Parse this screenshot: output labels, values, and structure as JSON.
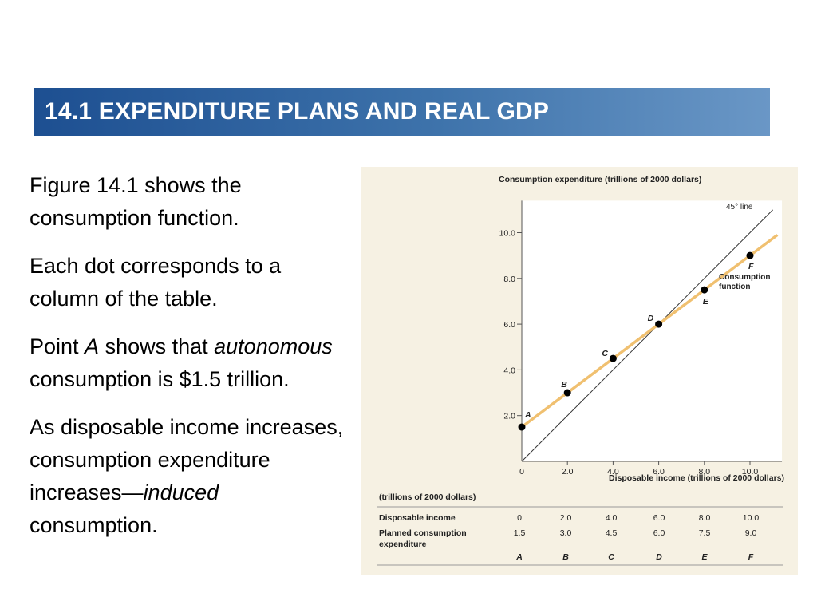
{
  "slide": {
    "title": "14.1 EXPENDITURE PLANS AND REAL GDP",
    "paragraphs": {
      "p1": "Figure 14.1 shows the consumption function.",
      "p2": "Each dot corresponds to a column of the table.",
      "p3": {
        "a": "Point ",
        "b": "A",
        "c": " shows that ",
        "d": "autonomous",
        "e": " consumption is $1.5 trillion."
      },
      "p4": {
        "a": "As disposable income increases, consumption expenditure increases—",
        "b": "induced",
        "c": " consumption."
      }
    }
  },
  "chart_data": {
    "type": "line",
    "ylabel": "Consumption expenditure (trillions of 2000 dollars)",
    "xlabel": "Disposable income (trillions of 2000 dollars)",
    "xlim": [
      0,
      11.4
    ],
    "ylim": [
      0,
      11.4
    ],
    "x_ticks": [
      0,
      2,
      4,
      6,
      8,
      10
    ],
    "x_tick_labels": [
      "0",
      "2.0",
      "4.0",
      "6.0",
      "8.0",
      "10.0"
    ],
    "y_ticks": [
      2,
      4,
      6,
      8,
      10
    ],
    "y_tick_labels": [
      "2.0",
      "4.0",
      "6.0",
      "8.0",
      "10.0"
    ],
    "series": [
      {
        "name": "Consumption function",
        "label_lines": [
          "Consumption",
          "function"
        ],
        "color": "#f0c070",
        "x": [
          0,
          11.2
        ],
        "y": [
          1.5,
          9.9
        ]
      },
      {
        "name": "45° line",
        "color": "#333333",
        "x": [
          0,
          11
        ],
        "y": [
          0,
          11
        ]
      }
    ],
    "points": [
      {
        "label": "A",
        "x": 0,
        "y": 1.5
      },
      {
        "label": "B",
        "x": 2,
        "y": 3.0
      },
      {
        "label": "C",
        "x": 4,
        "y": 4.5
      },
      {
        "label": "D",
        "x": 6,
        "y": 6.0
      },
      {
        "label": "E",
        "x": 8,
        "y": 7.5
      },
      {
        "label": "F",
        "x": 10,
        "y": 9.0
      }
    ],
    "dot_color": "#000000",
    "grid": false
  },
  "table": {
    "caption": "(trillions of 2000 dollars)",
    "rows": [
      {
        "label": "Disposable income",
        "values": [
          "0",
          "2.0",
          "4.0",
          "6.0",
          "8.0",
          "10.0"
        ]
      },
      {
        "label_lines": [
          "Planned consumption",
          "expenditure"
        ],
        "values": [
          "1.5",
          "3.0",
          "4.5",
          "6.0",
          "7.5",
          "9.0"
        ]
      }
    ],
    "column_letters": [
      "A",
      "B",
      "C",
      "D",
      "E",
      "F"
    ]
  }
}
